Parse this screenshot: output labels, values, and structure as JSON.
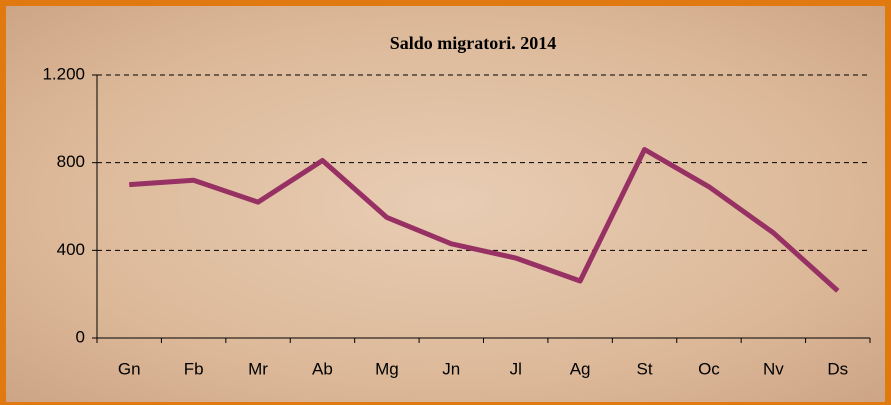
{
  "chart_data": {
    "type": "line",
    "title": "Saldo migratori. 2014",
    "categories": [
      "Gn",
      "Fb",
      "Mr",
      "Ab",
      "Mg",
      "Jn",
      "Jl",
      "Ag",
      "St",
      "Oc",
      "Nv",
      "Ds"
    ],
    "values": [
      700,
      720,
      620,
      810,
      550,
      430,
      365,
      260,
      860,
      690,
      480,
      215
    ],
    "color": "#973163",
    "ylim": [
      0,
      1200
    ],
    "yticks": [
      0,
      400,
      800,
      {
        "value": 1200,
        "label": "1.200"
      }
    ],
    "grid": true
  }
}
